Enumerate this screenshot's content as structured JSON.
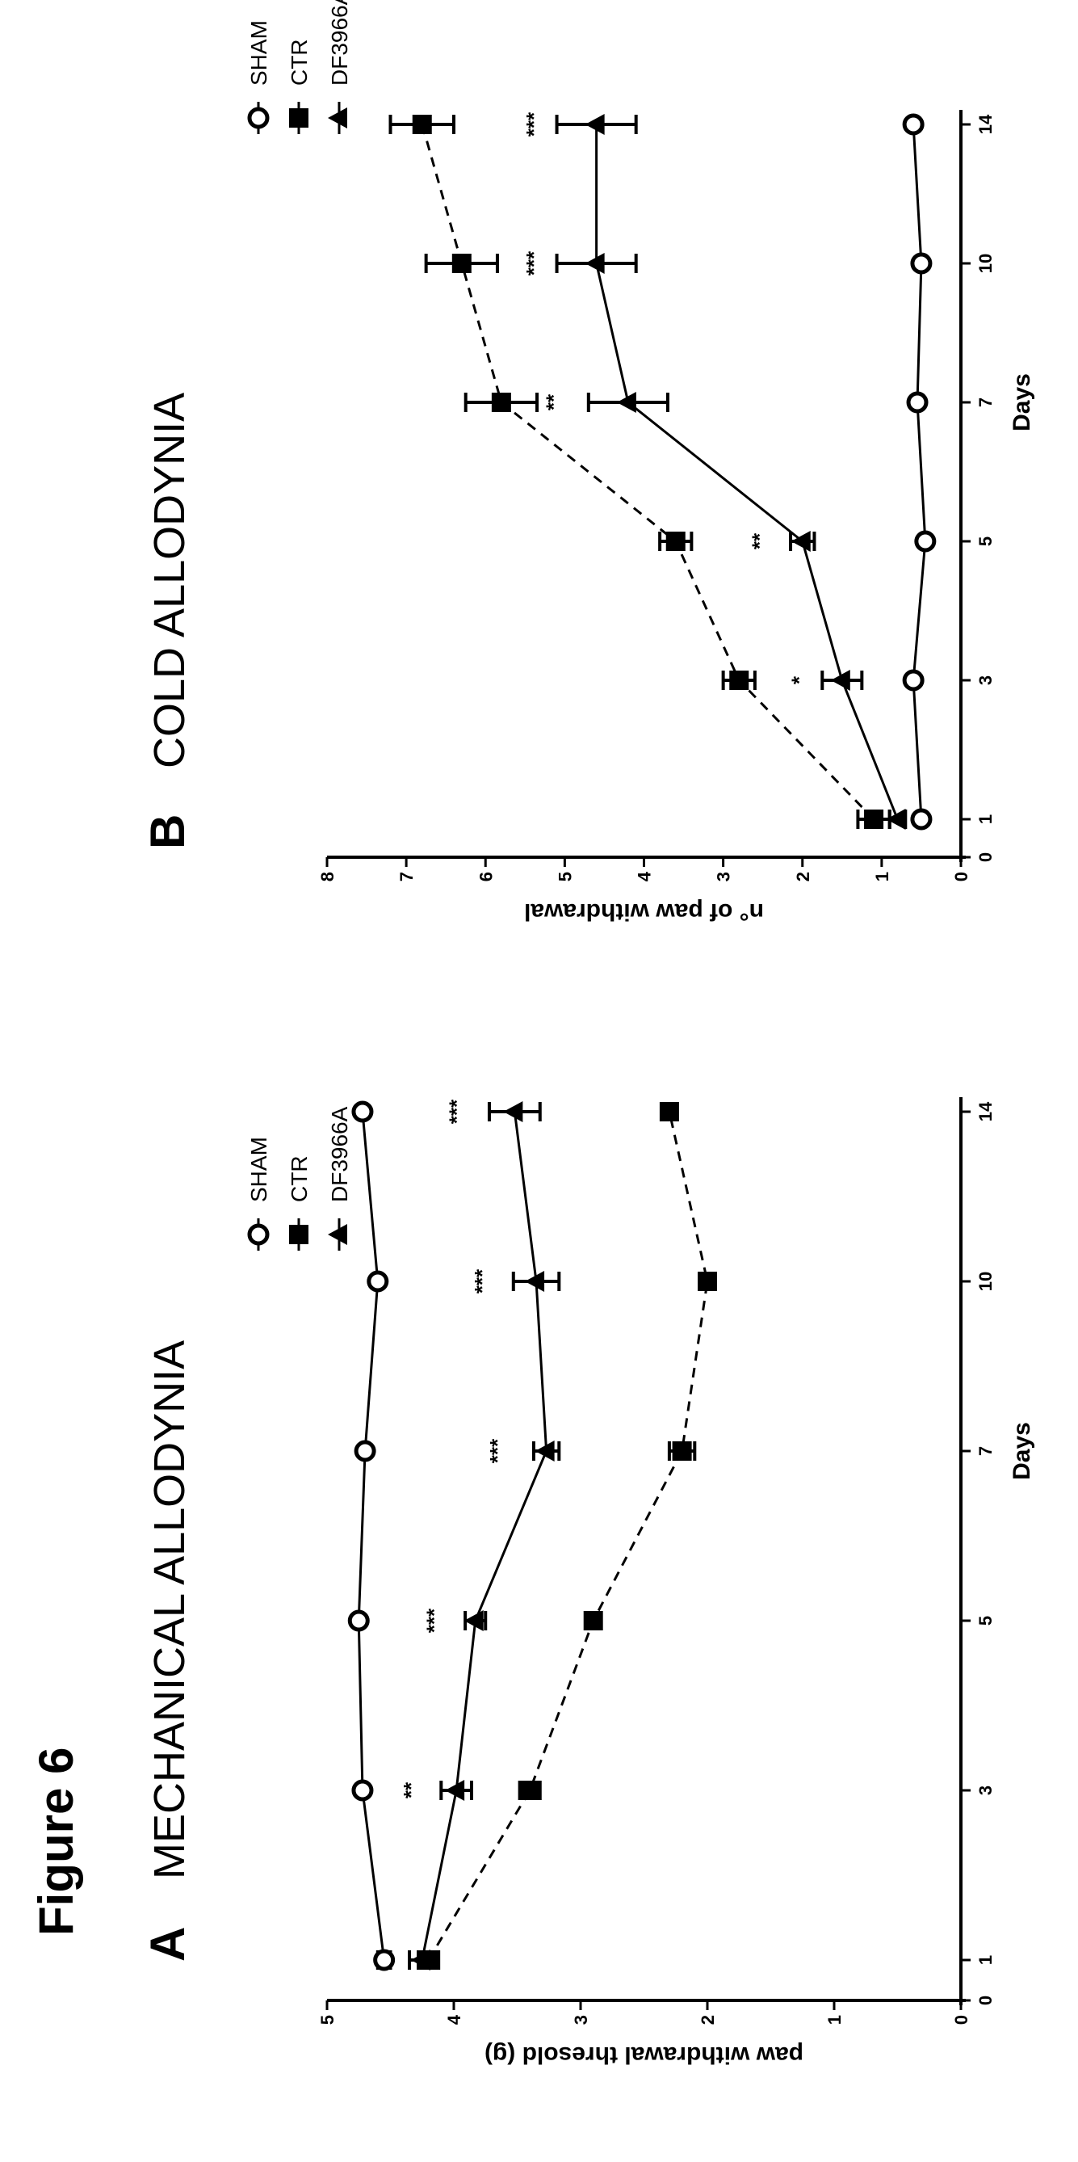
{
  "figure_title": "Figure 6",
  "legend": {
    "sham": "SHAM",
    "ctr": "CTR",
    "df": "DF3966A"
  },
  "chart_data": [
    {
      "panel": "A",
      "type": "line",
      "title": "MECHANICAL ALLODYNIA",
      "xlabel": "Days",
      "ylabel": "paw withdrawal thresold (g)",
      "x_ticks": [
        0,
        1,
        3,
        5,
        7,
        10,
        14
      ],
      "y_ticks": [
        0,
        1,
        2,
        3,
        4,
        5
      ],
      "ylim": [
        0,
        5
      ],
      "x_scale": "non-linear (listed ticks equally spaced after 1)",
      "legend_position": "top-right",
      "series": [
        {
          "name": "SHAM",
          "marker": "open-circle",
          "line": "solid",
          "x": [
            1,
            3,
            5,
            7,
            10,
            14
          ],
          "y": [
            4.55,
            4.72,
            4.75,
            4.7,
            4.6,
            4.72
          ],
          "err": [
            0.05,
            0,
            0,
            0,
            0,
            0
          ]
        },
        {
          "name": "CTR",
          "marker": "filled-square",
          "line": "dashed",
          "x": [
            1,
            3,
            5,
            7,
            10,
            14
          ],
          "y": [
            4.2,
            3.4,
            2.9,
            2.2,
            2.0,
            2.3
          ],
          "err": [
            0.08,
            0.08,
            0.05,
            0.1,
            0.05,
            0.05
          ]
        },
        {
          "name": "DF3966A",
          "marker": "filled-triangle",
          "line": "solid",
          "x": [
            1,
            3,
            5,
            7,
            10,
            14
          ],
          "y": [
            4.25,
            3.98,
            3.83,
            3.27,
            3.35,
            3.52
          ],
          "err": [
            0.1,
            0.12,
            0.08,
            0.1,
            0.18,
            0.2
          ]
        }
      ],
      "annotations": [
        {
          "x": 3,
          "y": 4.28,
          "text": "**"
        },
        {
          "x": 5,
          "y": 4.1,
          "text": "***"
        },
        {
          "x": 7,
          "y": 3.6,
          "text": "***"
        },
        {
          "x": 10,
          "y": 3.72,
          "text": "***"
        },
        {
          "x": 14,
          "y": 3.92,
          "text": "***"
        }
      ]
    },
    {
      "panel": "B",
      "type": "line",
      "title": "COLD ALLODYNIA",
      "xlabel": "Days",
      "ylabel": "n° of paw withdrawal",
      "x_ticks": [
        0,
        1,
        3,
        5,
        7,
        10,
        14
      ],
      "y_ticks": [
        0,
        1,
        2,
        3,
        4,
        5,
        6,
        7,
        8
      ],
      "ylim": [
        0,
        8
      ],
      "x_scale": "non-linear (listed ticks equally spaced after 1)",
      "legend_position": "top-right",
      "series": [
        {
          "name": "SHAM",
          "marker": "open-circle",
          "line": "solid",
          "x": [
            1,
            3,
            5,
            7,
            10,
            14
          ],
          "y": [
            0.5,
            0.6,
            0.45,
            0.55,
            0.5,
            0.6
          ],
          "err": [
            0,
            0,
            0,
            0,
            0,
            0
          ]
        },
        {
          "name": "CTR",
          "marker": "filled-square",
          "line": "dashed",
          "x": [
            1,
            3,
            5,
            7,
            10,
            14
          ],
          "y": [
            1.1,
            2.8,
            3.6,
            5.8,
            6.3,
            6.8
          ],
          "err": [
            0.2,
            0.2,
            0.2,
            0.45,
            0.45,
            0.4
          ]
        },
        {
          "name": "DF3966A",
          "marker": "filled-triangle",
          "line": "solid",
          "x": [
            1,
            3,
            5,
            7,
            10,
            14
          ],
          "y": [
            0.8,
            1.5,
            2.0,
            4.2,
            4.6,
            4.6
          ],
          "err": [
            0.1,
            0.25,
            0.15,
            0.5,
            0.5,
            0.5
          ]
        }
      ],
      "annotations": [
        {
          "x": 3,
          "y": 1.95,
          "text": "*"
        },
        {
          "x": 5,
          "y": 2.45,
          "text": "**"
        },
        {
          "x": 7,
          "y": 5.05,
          "text": "**"
        },
        {
          "x": 10,
          "y": 5.3,
          "text": "***"
        },
        {
          "x": 14,
          "y": 5.3,
          "text": "***"
        }
      ]
    }
  ]
}
